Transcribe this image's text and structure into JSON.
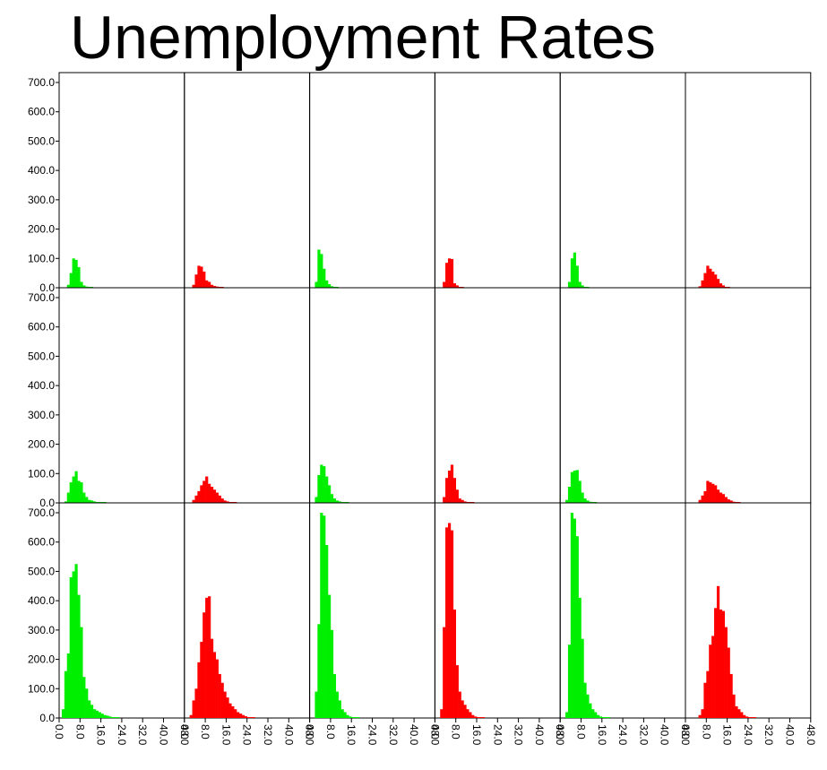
{
  "chart_data": {
    "type": "bar",
    "subtype": "histogram-small-multiples",
    "title": "Unemployment Rates",
    "grid": {
      "rows": 3,
      "cols": 6
    },
    "xlim": [
      0,
      48
    ],
    "ylim": [
      0,
      700
    ],
    "x_ticks": [
      "0.0",
      "8.0",
      "16.0",
      "24.0",
      "32.0",
      "40.0",
      "48.0"
    ],
    "y_ticks": [
      "0.0",
      "100.0",
      "200.0",
      "300.0",
      "400.0",
      "500.0",
      "600.0",
      "700.0"
    ],
    "bin_width": 1,
    "panels": [
      {
        "row": 0,
        "col": 0,
        "color": "#00ee00",
        "values": [
          0,
          0,
          0,
          10,
          50,
          100,
          95,
          70,
          20,
          8,
          4,
          2,
          1
        ]
      },
      {
        "row": 0,
        "col": 1,
        "color": "#ff0000",
        "values": [
          0,
          0,
          0,
          10,
          45,
          75,
          72,
          55,
          25,
          20,
          10,
          6,
          4,
          2,
          1
        ]
      },
      {
        "row": 0,
        "col": 2,
        "color": "#00ee00",
        "values": [
          0,
          0,
          20,
          130,
          115,
          65,
          25,
          12,
          5,
          2,
          1
        ]
      },
      {
        "row": 0,
        "col": 3,
        "color": "#ff0000",
        "values": [
          0,
          0,
          0,
          20,
          85,
          100,
          98,
          15,
          8,
          3,
          1
        ]
      },
      {
        "row": 0,
        "col": 4,
        "color": "#00ee00",
        "values": [
          0,
          0,
          0,
          20,
          100,
          120,
          75,
          20,
          8,
          3,
          1
        ]
      },
      {
        "row": 0,
        "col": 5,
        "color": "#ff0000",
        "values": [
          0,
          0,
          0,
          0,
          0,
          5,
          25,
          50,
          75,
          65,
          55,
          45,
          30,
          15,
          8,
          3,
          1
        ]
      },
      {
        "row": 1,
        "col": 0,
        "color": "#00ee00",
        "values": [
          0,
          0,
          5,
          35,
          70,
          90,
          108,
          75,
          70,
          35,
          20,
          10,
          8,
          5,
          3,
          2,
          1,
          1
        ]
      },
      {
        "row": 1,
        "col": 1,
        "color": "#ff0000",
        "values": [
          0,
          0,
          0,
          10,
          25,
          40,
          60,
          75,
          90,
          65,
          55,
          45,
          35,
          25,
          15,
          8,
          5,
          3,
          2,
          1
        ]
      },
      {
        "row": 1,
        "col": 2,
        "color": "#00ee00",
        "values": [
          0,
          0,
          20,
          95,
          130,
          125,
          90,
          60,
          30,
          15,
          8,
          5,
          3,
          2,
          1
        ]
      },
      {
        "row": 1,
        "col": 3,
        "color": "#ff0000",
        "values": [
          0,
          0,
          0,
          20,
          85,
          110,
          130,
          85,
          45,
          15,
          10,
          5,
          3,
          2,
          1
        ]
      },
      {
        "row": 1,
        "col": 4,
        "color": "#00ee00",
        "values": [
          0,
          0,
          10,
          55,
          105,
          110,
          112,
          75,
          35,
          15,
          8,
          4,
          2,
          1
        ]
      },
      {
        "row": 1,
        "col": 5,
        "color": "#ff0000",
        "values": [
          0,
          0,
          0,
          0,
          0,
          10,
          25,
          40,
          75,
          70,
          65,
          60,
          45,
          35,
          30,
          20,
          12,
          8,
          4,
          2,
          1
        ]
      },
      {
        "row": 2,
        "col": 0,
        "color": "#00ee00",
        "values": [
          0,
          30,
          160,
          220,
          480,
          500,
          525,
          420,
          310,
          140,
          100,
          60,
          45,
          30,
          25,
          20,
          15,
          10,
          8,
          5,
          3,
          2,
          1
        ]
      },
      {
        "row": 2,
        "col": 1,
        "color": "#ff0000",
        "values": [
          0,
          0,
          10,
          60,
          100,
          190,
          260,
          360,
          410,
          415,
          270,
          225,
          200,
          150,
          120,
          90,
          70,
          50,
          40,
          30,
          20,
          15,
          10,
          6,
          3,
          2,
          1
        ]
      },
      {
        "row": 2,
        "col": 2,
        "color": "#00ee00",
        "values": [
          0,
          0,
          90,
          320,
          720,
          690,
          590,
          420,
          300,
          150,
          90,
          60,
          30,
          20,
          10,
          5,
          3,
          2,
          1
        ]
      },
      {
        "row": 2,
        "col": 3,
        "color": "#ff0000",
        "values": [
          0,
          0,
          30,
          310,
          650,
          665,
          640,
          370,
          180,
          90,
          60,
          45,
          30,
          20,
          10,
          5,
          3,
          2,
          1
        ]
      },
      {
        "row": 2,
        "col": 4,
        "color": "#00ee00",
        "values": [
          0,
          0,
          20,
          250,
          710,
          680,
          620,
          410,
          270,
          120,
          80,
          50,
          30,
          20,
          10,
          5,
          3,
          2,
          1
        ]
      },
      {
        "row": 2,
        "col": 5,
        "color": "#ff0000",
        "values": [
          0,
          0,
          0,
          0,
          0,
          10,
          30,
          120,
          160,
          250,
          280,
          375,
          450,
          370,
          365,
          310,
          240,
          150,
          80,
          40,
          30,
          20,
          10,
          5,
          3,
          2,
          1
        ]
      }
    ]
  }
}
